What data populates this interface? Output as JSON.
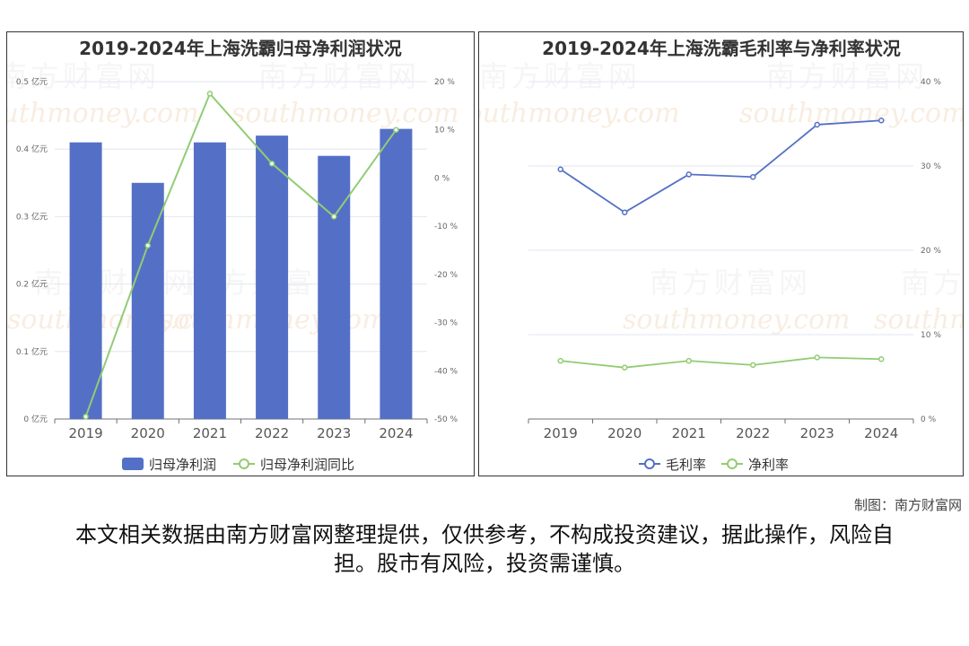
{
  "chart_data": [
    {
      "type": "bar",
      "title": "2019-2024年上海洗霸归母净利润状况",
      "categories": [
        "2019",
        "2020",
        "2021",
        "2022",
        "2023",
        "2024"
      ],
      "series": [
        {
          "name": "归母净利润",
          "type": "bar",
          "axis": "left",
          "values": [
            0.41,
            0.35,
            0.41,
            0.42,
            0.39,
            0.43
          ]
        },
        {
          "name": "归母净利润同比",
          "type": "line",
          "axis": "right",
          "values": [
            -49.5,
            -14,
            17.5,
            3,
            -8,
            10
          ]
        }
      ],
      "y_left": {
        "ylim": [
          0,
          0.5
        ],
        "ticks": [
          "0 亿元",
          "0.1 亿元",
          "0.2 亿元",
          "0.3 亿元",
          "0.4 亿元",
          "0.5 亿元"
        ]
      },
      "y_right": {
        "ylim": [
          -50,
          20
        ],
        "ticks": [
          "-50 %",
          "-40 %",
          "-30 %",
          "-20 %",
          "-10 %",
          "0 %",
          "10 %",
          "20 %"
        ]
      },
      "legend": "bottom-center",
      "grid": true,
      "colors": {
        "bar": "#5470c6",
        "line": "#91cc75"
      }
    },
    {
      "type": "line",
      "title": "2019-2024年上海洗霸毛利率与净利率状况",
      "categories": [
        "2019",
        "2020",
        "2021",
        "2022",
        "2023",
        "2024"
      ],
      "series": [
        {
          "name": "毛利率",
          "values": [
            29.6,
            24.5,
            29,
            28.7,
            34.9,
            35.4
          ]
        },
        {
          "name": "净利率",
          "values": [
            6.9,
            6.1,
            6.9,
            6.4,
            7.3,
            7.1
          ]
        }
      ],
      "y_right": {
        "ylim": [
          0,
          40
        ],
        "ticks": [
          "0 %",
          "10 %",
          "20 %",
          "30 %",
          "40 %"
        ]
      },
      "legend": "bottom-center",
      "grid": true,
      "colors": {
        "series": [
          "#5470c6",
          "#91cc75"
        ]
      }
    }
  ],
  "watermark": {
    "cn": "南方财富网",
    "en": "southmoney.com"
  },
  "credit": "制图：南方财富网",
  "disclaimer": "本文相关数据由南方财富网整理提供，仅供参考，不构成投资建议，据此操作，风险自担。股市有风险，投资需谨慎。"
}
